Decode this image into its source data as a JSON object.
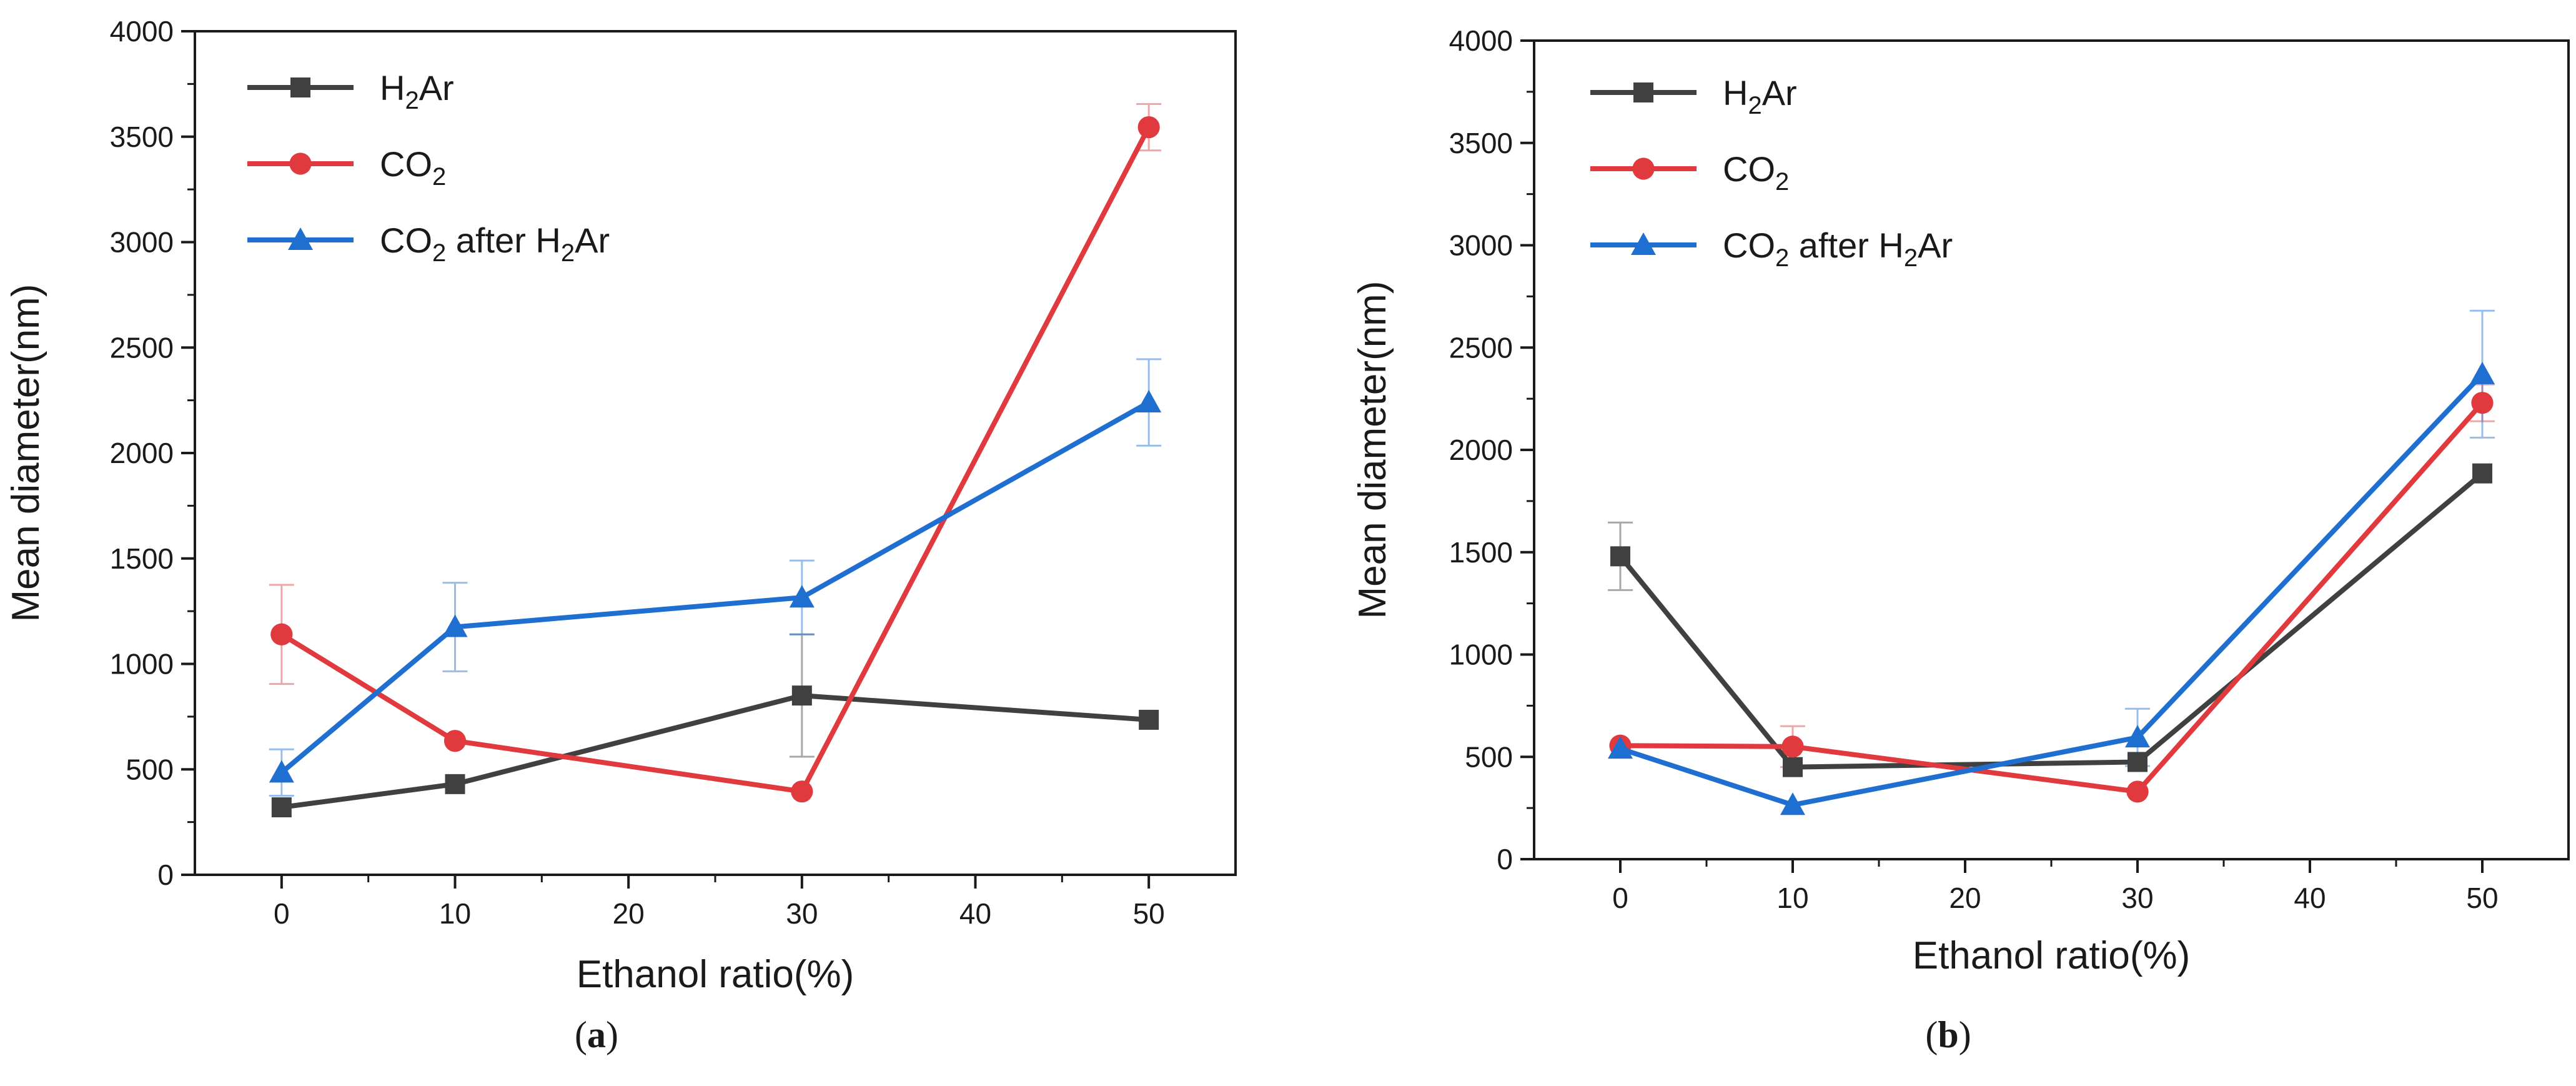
{
  "figure": {
    "panels": [
      {
        "label_open": "(",
        "label_letter": "a",
        "label_close": ")"
      },
      {
        "label_open": "(",
        "label_letter": "b",
        "label_close": ")"
      }
    ]
  },
  "chart_data": [
    {
      "type": "line",
      "panel": "a",
      "xlabel": "Ethanol ratio(%)",
      "ylabel": "Mean diameter(nm)",
      "xlim": [
        -5,
        55
      ],
      "ylim": [
        0,
        4000
      ],
      "xticks": [
        0,
        10,
        20,
        30,
        40,
        50
      ],
      "yticks": [
        0,
        500,
        1000,
        1500,
        2000,
        2500,
        3000,
        3500,
        4000
      ],
      "grid": false,
      "legend_position": "top-left",
      "x": [
        0,
        10,
        30,
        50
      ],
      "series": [
        {
          "name": "H2Ar",
          "legend_main": "H",
          "legend_sub": "2",
          "legend_rest": "Ar",
          "color": "#404040",
          "marker": "square",
          "values": [
            320,
            430,
            850,
            735
          ],
          "errors": [
            null,
            null,
            290,
            null
          ]
        },
        {
          "name": "CO2",
          "legend_main": "CO",
          "legend_sub": "2",
          "legend_rest": "",
          "color": "#e0393e",
          "marker": "circle",
          "values": [
            1140,
            635,
            395,
            3545
          ],
          "errors": [
            235,
            null,
            null,
            110
          ]
        },
        {
          "name": "CO2 after H2Ar",
          "legend_main": "CO",
          "legend_sub": "2",
          "legend_rest": " after H",
          "legend_sub2": "2",
          "legend_rest2": "Ar",
          "color": "#1f6fd1",
          "marker": "triangle",
          "values": [
            485,
            1175,
            1315,
            2240
          ],
          "errors": [
            110,
            210,
            175,
            205
          ]
        }
      ]
    },
    {
      "type": "line",
      "panel": "b",
      "xlabel": "Ethanol ratio(%)",
      "ylabel": "Mean diameter(nm)",
      "xlim": [
        -5,
        55
      ],
      "ylim": [
        0,
        4000
      ],
      "xticks": [
        0,
        10,
        20,
        30,
        40,
        50
      ],
      "yticks": [
        0,
        500,
        1000,
        1500,
        2000,
        2500,
        3000,
        3500,
        4000
      ],
      "grid": false,
      "legend_position": "top-left",
      "x": [
        0,
        10,
        30,
        50
      ],
      "series": [
        {
          "name": "H2Ar",
          "legend_main": "H",
          "legend_sub": "2",
          "legend_rest": "Ar",
          "color": "#404040",
          "marker": "square",
          "values": [
            1480,
            450,
            475,
            1885
          ],
          "errors": [
            165,
            null,
            null,
            null
          ]
        },
        {
          "name": "CO2",
          "legend_main": "CO",
          "legend_sub": "2",
          "legend_rest": "",
          "color": "#e0393e",
          "marker": "circle",
          "values": [
            555,
            550,
            330,
            2230
          ],
          "errors": [
            null,
            100,
            null,
            90
          ]
        },
        {
          "name": "CO2 after H2Ar",
          "legend_main": "CO",
          "legend_sub": "2",
          "legend_rest": " after H",
          "legend_sub2": "2",
          "legend_rest2": "Ar",
          "color": "#1f6fd1",
          "marker": "triangle",
          "values": [
            540,
            265,
            595,
            2370
          ],
          "errors": [
            null,
            null,
            140,
            310
          ]
        }
      ]
    }
  ]
}
